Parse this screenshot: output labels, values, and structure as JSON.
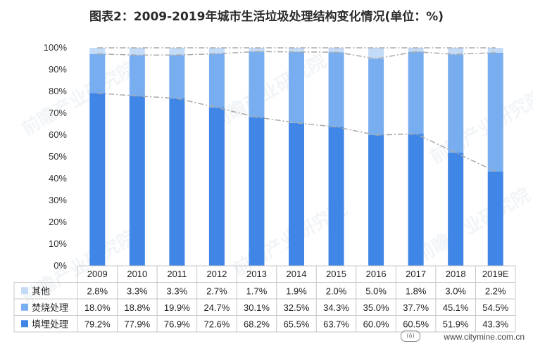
{
  "title": "图表2：2009-2019年城市生活垃圾处理结构变化情况(单位：%)",
  "watermark": "前瞻产业研究院",
  "source": "www.citymine.com.cn",
  "colors": {
    "other": "#c3dbf7",
    "incineration": "#78aef0",
    "landfill": "#3f86e6",
    "trend": "#aaaaaa",
    "grid": "#c8c8c8"
  },
  "chart_data": {
    "type": "bar",
    "stacked": true,
    "categories": [
      "2009",
      "2010",
      "2011",
      "2012",
      "2013",
      "2014",
      "2015",
      "2016",
      "2017",
      "2018",
      "2019E"
    ],
    "yticks": [
      "0%",
      "10%",
      "20%",
      "30%",
      "40%",
      "50%",
      "60%",
      "70%",
      "80%",
      "90%",
      "100%"
    ],
    "ylim": [
      0,
      100
    ],
    "series": [
      {
        "name": "填埋处理",
        "key": "landfill",
        "values": [
          79.2,
          77.9,
          76.9,
          72.6,
          68.2,
          65.5,
          63.7,
          60.0,
          60.5,
          51.9,
          43.3
        ],
        "labels": [
          "79.2%",
          "77.9%",
          "76.9%",
          "72.6%",
          "68.2%",
          "65.5%",
          "63.7%",
          "60.0%",
          "60.5%",
          "51.9%",
          "43.3%"
        ]
      },
      {
        "name": "焚烧处理",
        "key": "incineration",
        "values": [
          18.0,
          18.8,
          19.9,
          24.7,
          30.1,
          32.5,
          34.3,
          35.0,
          37.7,
          45.1,
          54.5
        ],
        "labels": [
          "18.0%",
          "18.8%",
          "19.9%",
          "24.7%",
          "30.1%",
          "32.5%",
          "34.3%",
          "35.0%",
          "37.7%",
          "45.1%",
          "54.5%"
        ]
      },
      {
        "name": "其他",
        "key": "other",
        "values": [
          2.8,
          3.3,
          3.3,
          2.7,
          1.7,
          1.9,
          2.0,
          5.0,
          1.8,
          3.0,
          2.2
        ],
        "labels": [
          "2.8%",
          "3.3%",
          "3.3%",
          "2.7%",
          "1.7%",
          "1.9%",
          "2.0%",
          "5.0%",
          "1.8%",
          "3.0%",
          "2.2%"
        ]
      }
    ],
    "table_rows": [
      "other",
      "incineration",
      "landfill"
    ],
    "legend": "data-table"
  }
}
